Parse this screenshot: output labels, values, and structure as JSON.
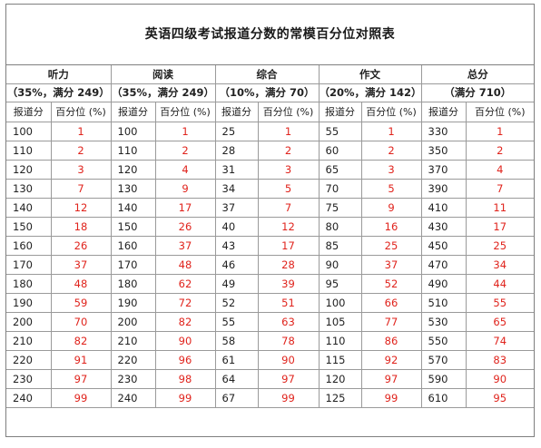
{
  "title": "英语四级考试报道分数的常模百分位对照表",
  "sections": [
    {
      "name": "听力",
      "sub": "（35%，满分 249）"
    },
    {
      "name": "阅读",
      "sub": "（35%，满分 249）"
    },
    {
      "name": "综合",
      "sub": "（10%，满分 70）"
    },
    {
      "name": "作文",
      "sub": "（20%，满分 142）"
    },
    {
      "name": "总分",
      "sub": "（满分 710）"
    }
  ],
  "col_headers": {
    "score": "报道分",
    "percentile": "百分位 (%)"
  },
  "rows": [
    [
      "100",
      "1",
      "100",
      "1",
      "25",
      "1",
      "55",
      "1",
      "330",
      "1"
    ],
    [
      "110",
      "2",
      "110",
      "2",
      "28",
      "2",
      "60",
      "2",
      "350",
      "2"
    ],
    [
      "120",
      "3",
      "120",
      "4",
      "31",
      "3",
      "65",
      "3",
      "370",
      "4"
    ],
    [
      "130",
      "7",
      "130",
      "9",
      "34",
      "5",
      "70",
      "5",
      "390",
      "7"
    ],
    [
      "140",
      "12",
      "140",
      "17",
      "37",
      "7",
      "75",
      "9",
      "410",
      "11"
    ],
    [
      "150",
      "18",
      "150",
      "26",
      "40",
      "12",
      "80",
      "16",
      "430",
      "17"
    ],
    [
      "160",
      "26",
      "160",
      "37",
      "43",
      "17",
      "85",
      "25",
      "450",
      "25"
    ],
    [
      "170",
      "37",
      "170",
      "48",
      "46",
      "28",
      "90",
      "37",
      "470",
      "34"
    ],
    [
      "180",
      "48",
      "180",
      "62",
      "49",
      "39",
      "95",
      "52",
      "490",
      "44"
    ],
    [
      "190",
      "59",
      "190",
      "72",
      "52",
      "51",
      "100",
      "66",
      "510",
      "55"
    ],
    [
      "200",
      "70",
      "200",
      "82",
      "55",
      "63",
      "105",
      "77",
      "530",
      "65"
    ],
    [
      "210",
      "82",
      "210",
      "90",
      "58",
      "78",
      "110",
      "86",
      "550",
      "74"
    ],
    [
      "220",
      "91",
      "220",
      "96",
      "61",
      "90",
      "115",
      "92",
      "570",
      "83"
    ],
    [
      "230",
      "97",
      "230",
      "98",
      "64",
      "97",
      "120",
      "97",
      "590",
      "90"
    ],
    [
      "240",
      "99",
      "240",
      "99",
      "67",
      "99",
      "125",
      "99",
      "610",
      "95"
    ]
  ],
  "colors": {
    "percentile_text": "#e0231c",
    "border": "#9a9a9a"
  }
}
